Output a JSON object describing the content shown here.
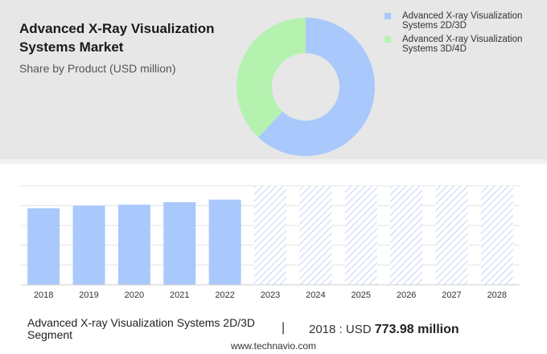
{
  "header": {
    "title": "Advanced X-Ray Visualization Systems Market",
    "subtitle": "Share by Product (USD million)"
  },
  "chart_data": [
    {
      "type": "pie",
      "series": [
        {
          "name": "Advanced X-ray Visualization Systems 2D/3D",
          "value": 62,
          "color": "#a9c8fb"
        },
        {
          "name": "Advanced X-ray Visualization Systems 3D/4D",
          "value": 38,
          "color": "#b5f2b0"
        }
      ],
      "legend": "right"
    },
    {
      "type": "bar",
      "categories": [
        "2018",
        "2019",
        "2020",
        "2021",
        "2022",
        "2023",
        "2024",
        "2025",
        "2026",
        "2027",
        "2028"
      ],
      "values": [
        773.98,
        800,
        810,
        835,
        860,
        null,
        null,
        null,
        null,
        null,
        null
      ],
      "forecast_categories": [
        "2023",
        "2024",
        "2025",
        "2026",
        "2027",
        "2028"
      ],
      "forecast_level": 1000,
      "ylim": [
        0,
        1000
      ],
      "bar_color": "#a9c8fb",
      "grid": true
    }
  ],
  "footer": {
    "segment": "Advanced X-ray Visualization Systems 2D/3D Segment",
    "separator": "|",
    "value_prefix": "2018 : USD",
    "value_big": "773.98 million",
    "website": "www.technavio.com"
  }
}
